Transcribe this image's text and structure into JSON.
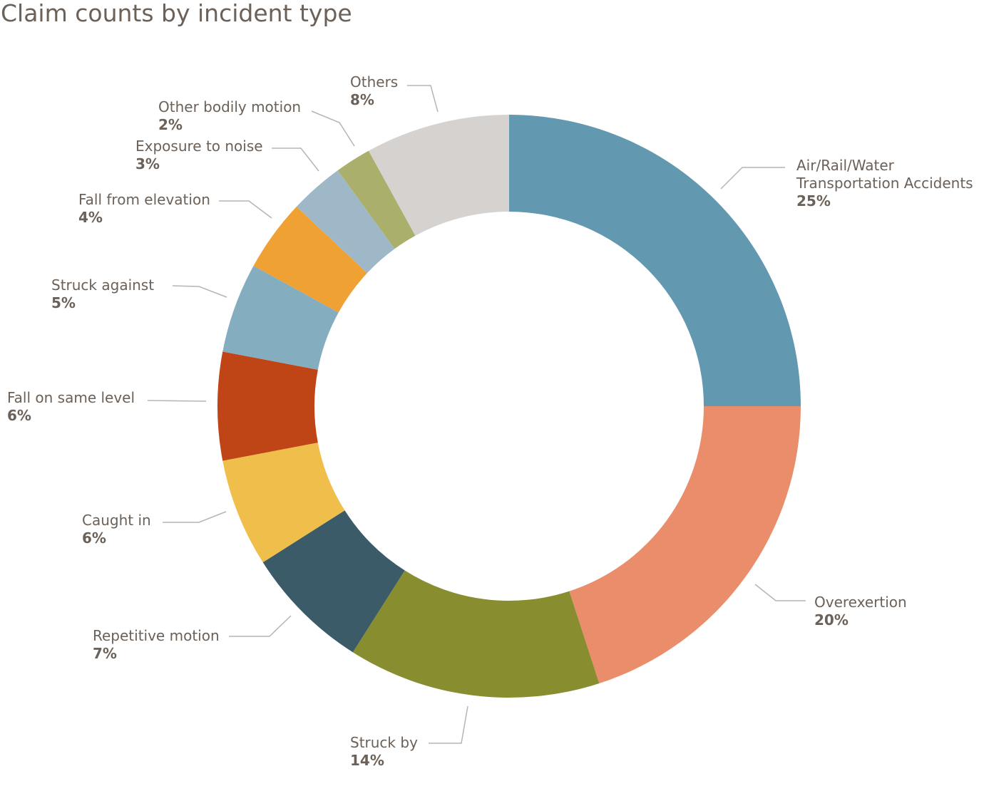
{
  "chart_data": {
    "type": "pie",
    "style": "donut",
    "title": "Claim counts by incident type",
    "categories": [
      "Air/Rail/Water Transportation Accidents",
      "Overexertion",
      "Struck by",
      "Repetitive motion",
      "Caught in",
      "Fall on same level",
      "Struck against",
      "Fall from elevation",
      "Exposure to noise",
      "Other bodily motion",
      "Others"
    ],
    "values": [
      25,
      20,
      14,
      7,
      6,
      6,
      5,
      4,
      3,
      2,
      8
    ],
    "value_labels": [
      "25%",
      "20%",
      "14%",
      "7%",
      "6%",
      "6%",
      "5%",
      "4%",
      "3%",
      "2%",
      "8%"
    ],
    "colors": [
      "#6399b0",
      "#ea8d6b",
      "#888e30",
      "#3b5b69",
      "#f0be4b",
      "#bf4516",
      "#84adbf",
      "#f0a134",
      "#9fb8c8",
      "#abaf6c",
      "#d6d2cf"
    ],
    "legend": "none",
    "grid": false
  },
  "styles": {
    "text_color": "#6b6158",
    "leader_line_color": "#b9b4af",
    "background": "#ffffff"
  }
}
